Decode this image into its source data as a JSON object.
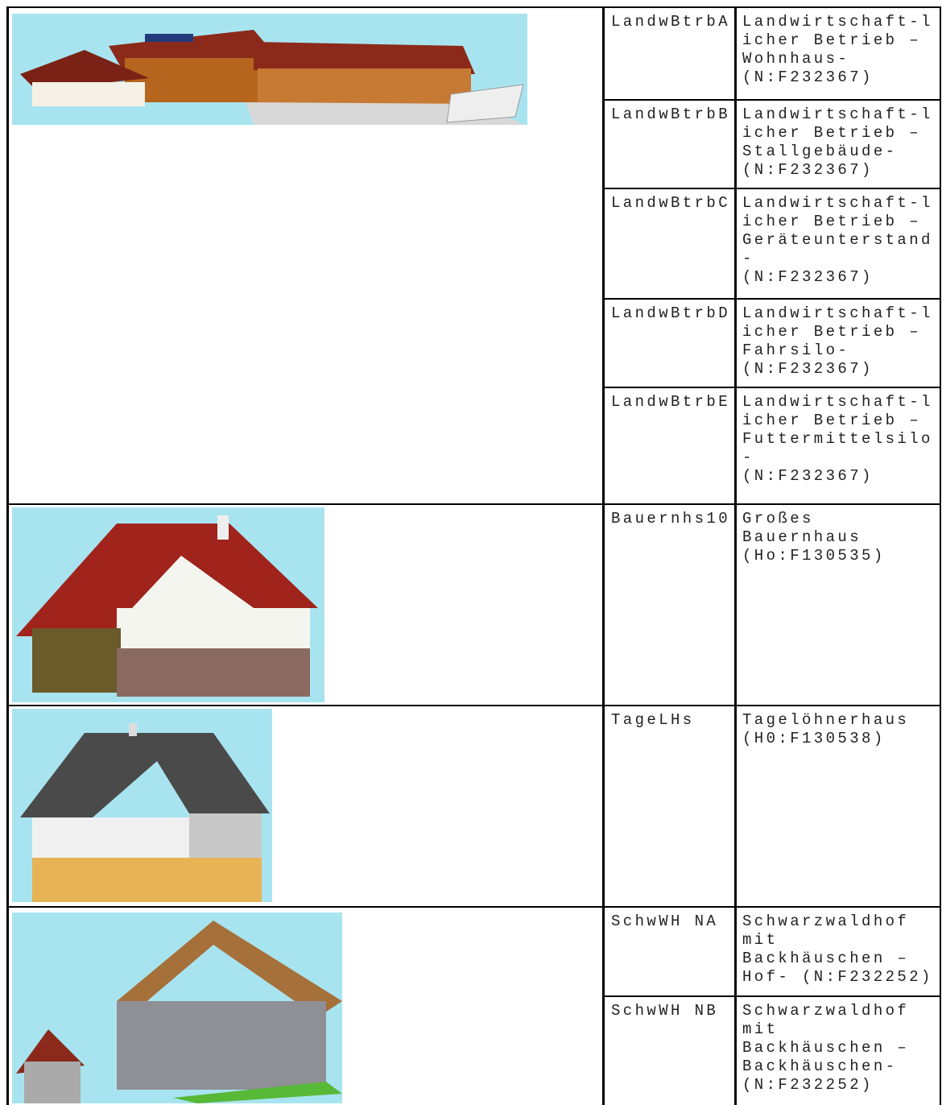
{
  "groups": [
    {
      "entries": [
        {
          "code": "LandwBtrbA",
          "description": [
            "Landwirtschaft-l",
            "icher Betrieb –",
            "Wohnhaus-",
            "(N:F232367)"
          ]
        },
        {
          "code": "LandwBtrbB",
          "description": [
            "Landwirtschaft-l",
            "icher Betrieb –",
            "Stallgebäude-",
            "(N:F232367)"
          ]
        },
        {
          "code": "LandwBtrbC",
          "description": [
            "Landwirtschaft-l",
            "icher Betrieb –",
            "Geräteunterstand",
            "-",
            "(N:F232367)"
          ]
        },
        {
          "code": "LandwBtrbD",
          "description": [
            "Landwirtschaft-l",
            "icher Betrieb –",
            "Fahrsilo-",
            "(N:F232367)"
          ]
        },
        {
          "code": "LandwBtrbE",
          "description": [
            "Landwirtschaft-l",
            "icher Betrieb –",
            "Futtermittelsilo",
            "-",
            "(N:F232367)"
          ]
        }
      ]
    },
    {
      "entries": [
        {
          "code": "Bauernhs10",
          "description": [
            "Großes",
            "Bauernhaus",
            "(Ho:F130535)"
          ]
        }
      ]
    },
    {
      "entries": [
        {
          "code": "TageLHs",
          "description": [
            "Tagelöhnerhaus",
            "(H0:F130538)"
          ]
        }
      ]
    },
    {
      "entries": [
        {
          "code": "SchwWH NA",
          "description": [
            "Schwarzwaldhof",
            "mit",
            "Backhäuschen –",
            "Hof- (N:F232252)"
          ]
        },
        {
          "code": "SchwWH NB",
          "description": [
            "Schwarzwaldhof",
            "mit",
            "Backhäuschen –",
            "Backhäuschen-",
            "(N:F232252)"
          ]
        }
      ]
    }
  ]
}
